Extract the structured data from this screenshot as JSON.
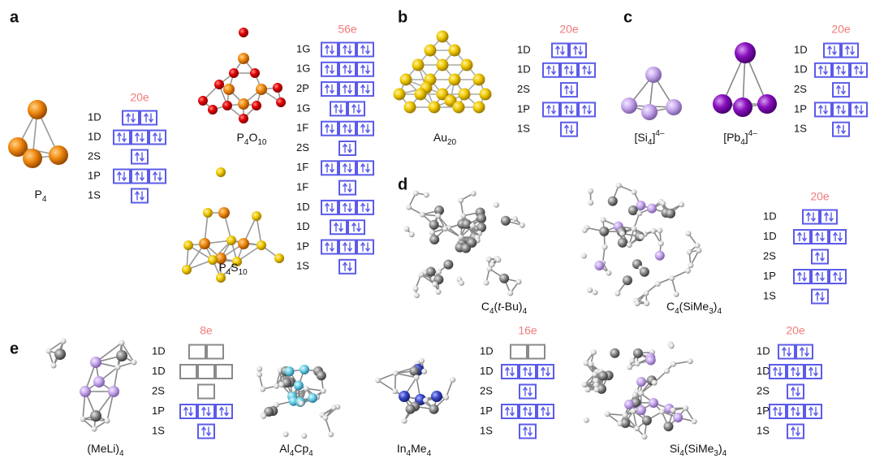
{
  "panel_labels": [
    "a",
    "b",
    "c",
    "d",
    "e"
  ],
  "molecules": [
    {
      "caption": [
        {
          "text": "P"
        },
        {
          "text": "4",
          "style": "sub"
        }
      ]
    },
    {
      "caption": [
        {
          "text": "P"
        },
        {
          "text": "4",
          "style": "sub"
        },
        {
          "text": "O"
        },
        {
          "text": "10",
          "style": "sub"
        }
      ]
    },
    {
      "caption": [
        {
          "text": "P"
        },
        {
          "text": "4",
          "style": "sub"
        },
        {
          "text": "S"
        },
        {
          "text": "10",
          "style": "sub"
        }
      ]
    },
    {
      "caption": [
        {
          "text": "Au"
        },
        {
          "text": "20",
          "style": "sub"
        }
      ]
    },
    {
      "caption": [
        {
          "text": "[Si"
        },
        {
          "text": "4",
          "style": "sub"
        },
        {
          "text": "]"
        },
        {
          "text": "4–",
          "style": "sup"
        }
      ]
    },
    {
      "caption": [
        {
          "text": "[Pb"
        },
        {
          "text": "4",
          "style": "sub"
        },
        {
          "text": "]"
        },
        {
          "text": "4–",
          "style": "sup"
        }
      ]
    },
    {
      "caption": [
        {
          "text": "C"
        },
        {
          "text": "4",
          "style": "sub"
        },
        {
          "text": "("
        },
        {
          "text": "t",
          "style": "it"
        },
        {
          "text": "-Bu)"
        },
        {
          "text": "4",
          "style": "sub"
        }
      ]
    },
    {
      "caption": [
        {
          "text": "C"
        },
        {
          "text": "4",
          "style": "sub"
        },
        {
          "text": "(SiMe"
        },
        {
          "text": "3",
          "style": "sub"
        },
        {
          "text": ")"
        },
        {
          "text": "4",
          "style": "sub"
        }
      ]
    },
    {
      "caption": [
        {
          "text": "(MeLi)"
        },
        {
          "text": "4",
          "style": "sub"
        }
      ]
    },
    {
      "caption": [
        {
          "text": "Al"
        },
        {
          "text": "4",
          "style": "sub"
        },
        {
          "text": "Cp"
        },
        {
          "text": "4",
          "style": "sub"
        }
      ]
    },
    {
      "caption": [
        {
          "text": "In"
        },
        {
          "text": "4",
          "style": "sub"
        },
        {
          "text": "Me"
        },
        {
          "text": "4",
          "style": "sub"
        }
      ]
    },
    {
      "caption": [
        {
          "text": "Si"
        },
        {
          "text": "4",
          "style": "sub"
        },
        {
          "text": "(SiMe"
        },
        {
          "text": "3",
          "style": "sub"
        },
        {
          "text": ")"
        },
        {
          "text": "4",
          "style": "sub"
        }
      ]
    }
  ],
  "diagrams": [
    {
      "electrons": "20e",
      "levels": [
        {
          "label": "1D",
          "boxes": 2,
          "filled": true
        },
        {
          "label": "1D",
          "boxes": 3,
          "filled": true
        },
        {
          "label": "2S",
          "boxes": 1,
          "filled": true
        },
        {
          "label": "1P",
          "boxes": 3,
          "filled": true
        },
        {
          "label": "1S",
          "boxes": 1,
          "filled": true
        }
      ]
    },
    {
      "electrons": "56e",
      "levels": [
        {
          "label": "1G",
          "boxes": 3,
          "filled": true
        },
        {
          "label": "1G",
          "boxes": 3,
          "filled": true
        },
        {
          "label": "2P",
          "boxes": 3,
          "filled": true
        },
        {
          "label": "1G",
          "boxes": 2,
          "filled": true
        },
        {
          "label": "1F",
          "boxes": 3,
          "filled": true
        },
        {
          "label": "2S",
          "boxes": 1,
          "filled": true
        },
        {
          "label": "1F",
          "boxes": 3,
          "filled": true
        },
        {
          "label": "1F",
          "boxes": 1,
          "filled": true
        },
        {
          "label": "1D",
          "boxes": 3,
          "filled": true
        },
        {
          "label": "1D",
          "boxes": 2,
          "filled": true
        },
        {
          "label": "1P",
          "boxes": 3,
          "filled": true
        },
        {
          "label": "1S",
          "boxes": 1,
          "filled": true
        }
      ]
    },
    {
      "electrons": "20e",
      "levels": [
        {
          "label": "1D",
          "boxes": 2,
          "filled": true
        },
        {
          "label": "1D",
          "boxes": 3,
          "filled": true
        },
        {
          "label": "2S",
          "boxes": 1,
          "filled": true
        },
        {
          "label": "1P",
          "boxes": 3,
          "filled": true
        },
        {
          "label": "1S",
          "boxes": 1,
          "filled": true
        }
      ]
    },
    {
      "electrons": "20e",
      "levels": [
        {
          "label": "1D",
          "boxes": 2,
          "filled": true
        },
        {
          "label": "1D",
          "boxes": 3,
          "filled": true
        },
        {
          "label": "2S",
          "boxes": 1,
          "filled": true
        },
        {
          "label": "1P",
          "boxes": 3,
          "filled": true
        },
        {
          "label": "1S",
          "boxes": 1,
          "filled": true
        }
      ]
    },
    {
      "electrons": "20e",
      "levels": [
        {
          "label": "1D",
          "boxes": 2,
          "filled": true
        },
        {
          "label": "1D",
          "boxes": 3,
          "filled": true
        },
        {
          "label": "2S",
          "boxes": 1,
          "filled": true
        },
        {
          "label": "1P",
          "boxes": 3,
          "filled": true
        },
        {
          "label": "1S",
          "boxes": 1,
          "filled": true
        }
      ]
    },
    {
      "electrons": "8e",
      "levels": [
        {
          "label": "1D",
          "boxes": 2,
          "filled": false
        },
        {
          "label": "1D",
          "boxes": 3,
          "filled": false
        },
        {
          "label": "2S",
          "boxes": 1,
          "filled": false
        },
        {
          "label": "1P",
          "boxes": 3,
          "filled": true
        },
        {
          "label": "1S",
          "boxes": 1,
          "filled": true
        }
      ]
    },
    {
      "electrons": "16e",
      "levels": [
        {
          "label": "1D",
          "boxes": 2,
          "filled": false
        },
        {
          "label": "1D",
          "boxes": 3,
          "filled": true
        },
        {
          "label": "2S",
          "boxes": 1,
          "filled": true
        },
        {
          "label": "1P",
          "boxes": 3,
          "filled": true
        },
        {
          "label": "1S",
          "boxes": 1,
          "filled": true
        }
      ]
    },
    {
      "electrons": "20e",
      "levels": [
        {
          "label": "1D",
          "boxes": 2,
          "filled": true
        },
        {
          "label": "1D",
          "boxes": 3,
          "filled": true
        },
        {
          "label": "2S",
          "boxes": 1,
          "filled": true
        },
        {
          "label": "1P",
          "boxes": 3,
          "filled": true
        },
        {
          "label": "1S",
          "boxes": 1,
          "filled": true
        }
      ]
    }
  ]
}
